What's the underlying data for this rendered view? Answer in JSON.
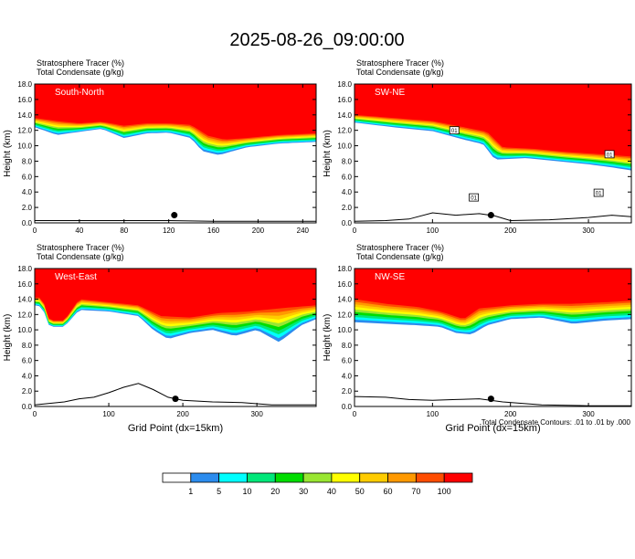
{
  "title": "2025-08-26_09:00:00",
  "colors": {
    "levels": [
      "#ffffff",
      "#2c8cee",
      "#00ffff",
      "#00e87a",
      "#00dd00",
      "#99e632",
      "#ffff00",
      "#ffcc00",
      "#ff9900",
      "#ff4d00",
      "#ff0000"
    ],
    "contour": "#000000",
    "terrain": "#000000",
    "point_marker": "#000000"
  },
  "chart_data": [
    {
      "type": "cross-section",
      "panel_label": "South-North",
      "header_lines": [
        "Stratosphere Tracer   (%)",
        "Total Condensate   (g/kg)"
      ],
      "ylabel": "Height (km)",
      "xlabel": "",
      "xlim": [
        0,
        252
      ],
      "xticks": [
        0,
        40,
        80,
        120,
        160,
        200,
        240
      ],
      "ylim": [
        0,
        18
      ],
      "yticks": [
        0.0,
        2.0,
        4.0,
        6.0,
        8.0,
        10.0,
        12.0,
        14.0,
        16.0,
        18.0
      ],
      "tracer_100_base_km": [
        [
          0,
          13.6
        ],
        [
          20,
          13.2
        ],
        [
          40,
          12.9
        ],
        [
          60,
          13.1
        ],
        [
          80,
          12.6
        ],
        [
          100,
          12.9
        ],
        [
          120,
          12.9
        ],
        [
          140,
          12.7
        ],
        [
          155,
          11.3
        ],
        [
          170,
          10.8
        ],
        [
          190,
          11.0
        ],
        [
          220,
          11.4
        ],
        [
          252,
          11.6
        ]
      ],
      "tracer_1_base_km": [
        [
          0,
          12.4
        ],
        [
          20,
          11.4
        ],
        [
          40,
          11.8
        ],
        [
          60,
          12.2
        ],
        [
          80,
          11.0
        ],
        [
          100,
          11.6
        ],
        [
          120,
          11.7
        ],
        [
          140,
          11.0
        ],
        [
          150,
          9.3
        ],
        [
          165,
          8.8
        ],
        [
          175,
          9.2
        ],
        [
          190,
          9.8
        ],
        [
          220,
          10.3
        ],
        [
          252,
          10.5
        ]
      ],
      "terrain_km": [
        [
          0,
          0.3
        ],
        [
          40,
          0.3
        ],
        [
          80,
          0.3
        ],
        [
          120,
          0.3
        ],
        [
          160,
          0.2
        ],
        [
          200,
          0.2
        ],
        [
          252,
          0.2
        ]
      ],
      "point_marker": {
        "x": 125,
        "y_km": 1.0
      }
    },
    {
      "type": "cross-section",
      "panel_label": "SW-NE",
      "header_lines": [
        "Stratosphere Tracer   (%)",
        "Total Condensate   (g/kg)"
      ],
      "ylabel": "Height (km)",
      "xlabel": "",
      "xlim": [
        0,
        355
      ],
      "xticks": [
        0,
        100,
        200,
        300
      ],
      "ylim": [
        0,
        18
      ],
      "yticks": [
        0.0,
        2.0,
        4.0,
        6.0,
        8.0,
        10.0,
        12.0,
        14.0,
        16.0,
        18.0
      ],
      "tracer_100_base_km": [
        [
          0,
          14.0
        ],
        [
          50,
          13.6
        ],
        [
          100,
          13.2
        ],
        [
          140,
          12.4
        ],
        [
          170,
          11.8
        ],
        [
          190,
          9.8
        ],
        [
          230,
          9.6
        ],
        [
          270,
          9.2
        ],
        [
          300,
          9.0
        ],
        [
          330,
          8.8
        ],
        [
          355,
          8.6
        ]
      ],
      "tracer_1_base_km": [
        [
          0,
          13.0
        ],
        [
          50,
          12.4
        ],
        [
          100,
          11.9
        ],
        [
          140,
          10.8
        ],
        [
          165,
          10.2
        ],
        [
          180,
          8.2
        ],
        [
          220,
          8.4
        ],
        [
          260,
          8.0
        ],
        [
          300,
          7.6
        ],
        [
          330,
          7.2
        ],
        [
          355,
          6.8
        ]
      ],
      "terrain_km": [
        [
          0,
          0.2
        ],
        [
          40,
          0.3
        ],
        [
          70,
          0.5
        ],
        [
          100,
          1.3
        ],
        [
          130,
          1.0
        ],
        [
          160,
          1.2
        ],
        [
          180,
          0.9
        ],
        [
          200,
          0.3
        ],
        [
          250,
          0.4
        ],
        [
          300,
          0.7
        ],
        [
          330,
          1.0
        ],
        [
          355,
          0.8
        ]
      ],
      "contour_labels": [
        {
          "text": "01",
          "x": 153,
          "y_km": 3.3
        },
        {
          "text": "01",
          "x": 128,
          "y_km": 12.0
        },
        {
          "text": "01",
          "x": 313,
          "y_km": 3.9
        },
        {
          "text": "01",
          "x": 327,
          "y_km": 8.9
        }
      ],
      "point_marker": {
        "x": 175,
        "y_km": 1.0
      }
    },
    {
      "type": "cross-section",
      "panel_label": "West-East",
      "header_lines": [
        "Stratosphere Tracer   (%)",
        "Total Condensate   (g/kg)"
      ],
      "ylabel": "Height (km)",
      "xlabel": "Grid Point (dx=15km)",
      "xlim": [
        0,
        380
      ],
      "xticks": [
        0,
        100,
        200,
        300
      ],
      "ylim": [
        0,
        18
      ],
      "yticks": [
        0.0,
        2.0,
        4.0,
        6.0,
        8.0,
        10.0,
        12.0,
        14.0,
        16.0,
        18.0
      ],
      "tracer_100_base_km": [
        [
          0,
          14.2
        ],
        [
          10,
          14.2
        ],
        [
          20,
          11.2
        ],
        [
          40,
          11.2
        ],
        [
          60,
          14.0
        ],
        [
          100,
          13.6
        ],
        [
          140,
          13.2
        ],
        [
          170,
          11.8
        ],
        [
          210,
          11.6
        ],
        [
          250,
          12.2
        ],
        [
          290,
          12.4
        ],
        [
          330,
          12.8
        ],
        [
          380,
          13.2
        ]
      ],
      "tracer_1_base_km": [
        [
          0,
          13.2
        ],
        [
          10,
          13.0
        ],
        [
          20,
          10.4
        ],
        [
          40,
          10.4
        ],
        [
          60,
          12.6
        ],
        [
          100,
          12.4
        ],
        [
          140,
          11.8
        ],
        [
          160,
          10.0
        ],
        [
          180,
          8.8
        ],
        [
          210,
          9.6
        ],
        [
          240,
          10.0
        ],
        [
          270,
          9.2
        ],
        [
          300,
          10.0
        ],
        [
          330,
          8.4
        ],
        [
          360,
          10.6
        ],
        [
          380,
          11.4
        ]
      ],
      "terrain_km": [
        [
          0,
          0.2
        ],
        [
          40,
          0.6
        ],
        [
          60,
          1.0
        ],
        [
          80,
          1.2
        ],
        [
          100,
          1.8
        ],
        [
          120,
          2.5
        ],
        [
          140,
          3.0
        ],
        [
          160,
          2.2
        ],
        [
          180,
          1.2
        ],
        [
          200,
          0.8
        ],
        [
          240,
          0.6
        ],
        [
          280,
          0.5
        ],
        [
          320,
          0.2
        ],
        [
          380,
          0.2
        ]
      ],
      "point_marker": {
        "x": 190,
        "y_km": 1.0
      }
    },
    {
      "type": "cross-section",
      "panel_label": "NW-SE",
      "header_lines": [
        "Stratosphere Tracer   (%)",
        "Total Condensate   (g/kg)"
      ],
      "ylabel": "Height (km)",
      "xlabel": "Grid Point (dx=15km)",
      "xlim": [
        0,
        355
      ],
      "xticks": [
        0,
        100,
        200,
        300
      ],
      "ylim": [
        0,
        18
      ],
      "yticks": [
        0.0,
        2.0,
        4.0,
        6.0,
        8.0,
        10.0,
        12.0,
        14.0,
        16.0,
        18.0
      ],
      "tracer_100_base_km": [
        [
          0,
          14.0
        ],
        [
          40,
          13.4
        ],
        [
          80,
          13.0
        ],
        [
          110,
          12.4
        ],
        [
          140,
          11.4
        ],
        [
          160,
          12.8
        ],
        [
          200,
          13.2
        ],
        [
          240,
          13.4
        ],
        [
          280,
          13.4
        ],
        [
          320,
          13.6
        ],
        [
          355,
          13.8
        ]
      ],
      "tracer_1_base_km": [
        [
          0,
          11.0
        ],
        [
          40,
          10.8
        ],
        [
          80,
          10.6
        ],
        [
          110,
          10.4
        ],
        [
          130,
          9.6
        ],
        [
          150,
          9.4
        ],
        [
          170,
          10.6
        ],
        [
          200,
          11.4
        ],
        [
          240,
          11.6
        ],
        [
          280,
          10.8
        ],
        [
          320,
          11.2
        ],
        [
          355,
          11.4
        ]
      ],
      "terrain_km": [
        [
          0,
          1.3
        ],
        [
          40,
          1.2
        ],
        [
          70,
          0.9
        ],
        [
          100,
          0.8
        ],
        [
          130,
          0.9
        ],
        [
          160,
          1.0
        ],
        [
          190,
          0.6
        ],
        [
          240,
          0.2
        ],
        [
          300,
          0.1
        ],
        [
          355,
          0.1
        ]
      ],
      "point_marker": {
        "x": 175,
        "y_km": 1.0
      }
    }
  ],
  "footnote": "Total Condensate Contours: .01 to .01 by .000",
  "colorbar": {
    "levels": [
      "1",
      "5",
      "10",
      "20",
      "30",
      "40",
      "50",
      "60",
      "70",
      "100"
    ]
  }
}
